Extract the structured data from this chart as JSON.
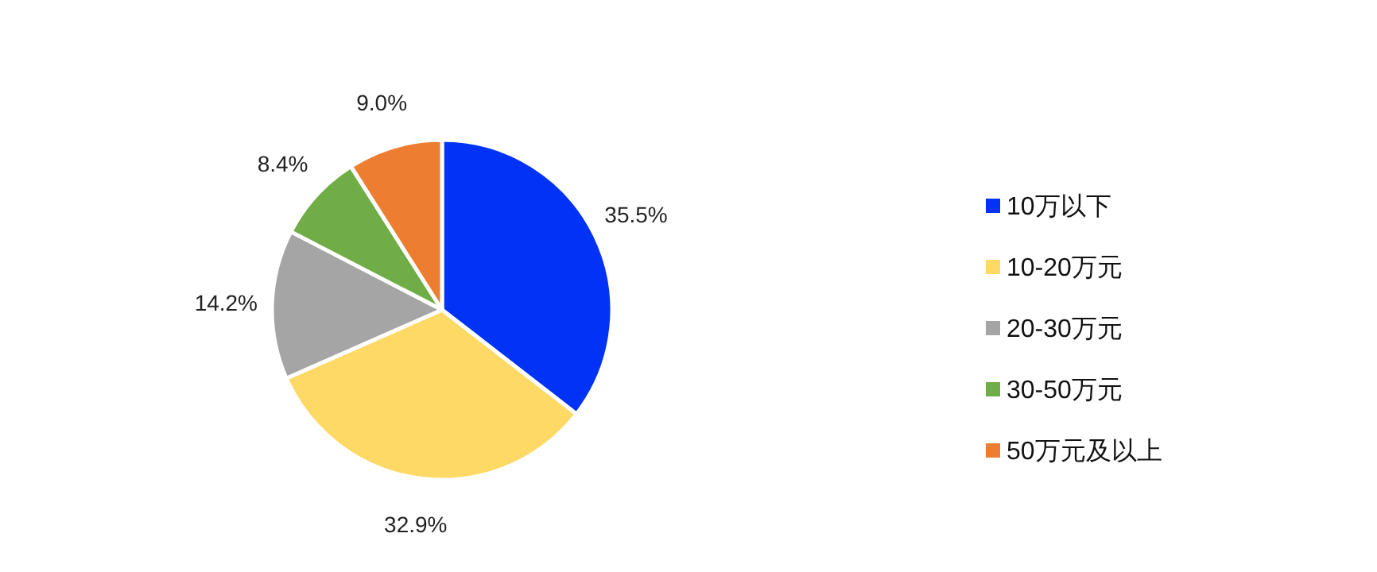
{
  "chart_data": {
    "type": "pie",
    "categories": [
      "10万以下",
      "10-20万元",
      "20-30万元",
      "30-50万元",
      "50万元及以上"
    ],
    "values": [
      35.5,
      32.9,
      14.2,
      8.4,
      9.0
    ],
    "colors": [
      "#0033f5",
      "#ffd966",
      "#a5a5a5",
      "#70ad47",
      "#ed7d31"
    ],
    "value_labels": [
      "35.5%",
      "32.9%",
      "14.2%",
      "8.4%",
      "9.0%"
    ],
    "legend": "right"
  }
}
